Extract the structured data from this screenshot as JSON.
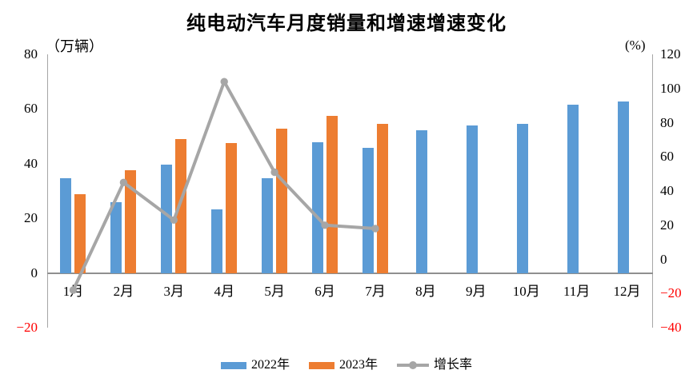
{
  "title": "纯电动汽车月度销量和增速增速变化",
  "axes": {
    "left_unit": "（万辆）",
    "right_unit": "(%)",
    "left_ticks": [
      80,
      60,
      40,
      20,
      0,
      -20
    ],
    "right_ticks": [
      120,
      100,
      80,
      60,
      40,
      20,
      0,
      -20,
      -40
    ],
    "negative_tick_color": "#FF0000",
    "axis_line_color": "#A6A6A6"
  },
  "legend": {
    "items": [
      {
        "label": "2022年",
        "type": "bar",
        "color": "#5B9BD5"
      },
      {
        "label": "2023年",
        "type": "bar",
        "color": "#ED7D31"
      },
      {
        "label": "增长率",
        "type": "line",
        "color": "#A6A6A6"
      }
    ]
  },
  "chart_data": {
    "type": "bar",
    "title": "纯电动汽车月度销量和增速增速变化",
    "categories": [
      "1月",
      "2月",
      "3月",
      "4月",
      "5月",
      "6月",
      "7月",
      "8月",
      "9月",
      "10月",
      "11月",
      "12月"
    ],
    "series": [
      {
        "name": "2022年",
        "type": "bar",
        "axis": "left",
        "color": "#5B9BD5",
        "values": [
          34.6,
          25.8,
          39.6,
          23.3,
          34.7,
          47.9,
          45.9,
          52.3,
          54.1,
          54.6,
          61.7,
          62.8
        ]
      },
      {
        "name": "2023年",
        "type": "bar",
        "axis": "left",
        "color": "#ED7D31",
        "values": [
          28.7,
          37.7,
          49.0,
          47.4,
          52.7,
          57.6,
          54.5,
          null,
          null,
          null,
          null,
          null
        ]
      },
      {
        "name": "增长率",
        "type": "line",
        "axis": "right",
        "color": "#A6A6A6",
        "values": [
          -18,
          45,
          23,
          104,
          51,
          20,
          18,
          null,
          null,
          null,
          null,
          null
        ]
      }
    ],
    "left_ylabel": "（万辆）",
    "right_ylabel": "(%)",
    "left_ylim": [
      -20,
      80
    ],
    "right_ylim": [
      -40,
      120
    ],
    "grid": false,
    "legend_position": "bottom"
  }
}
